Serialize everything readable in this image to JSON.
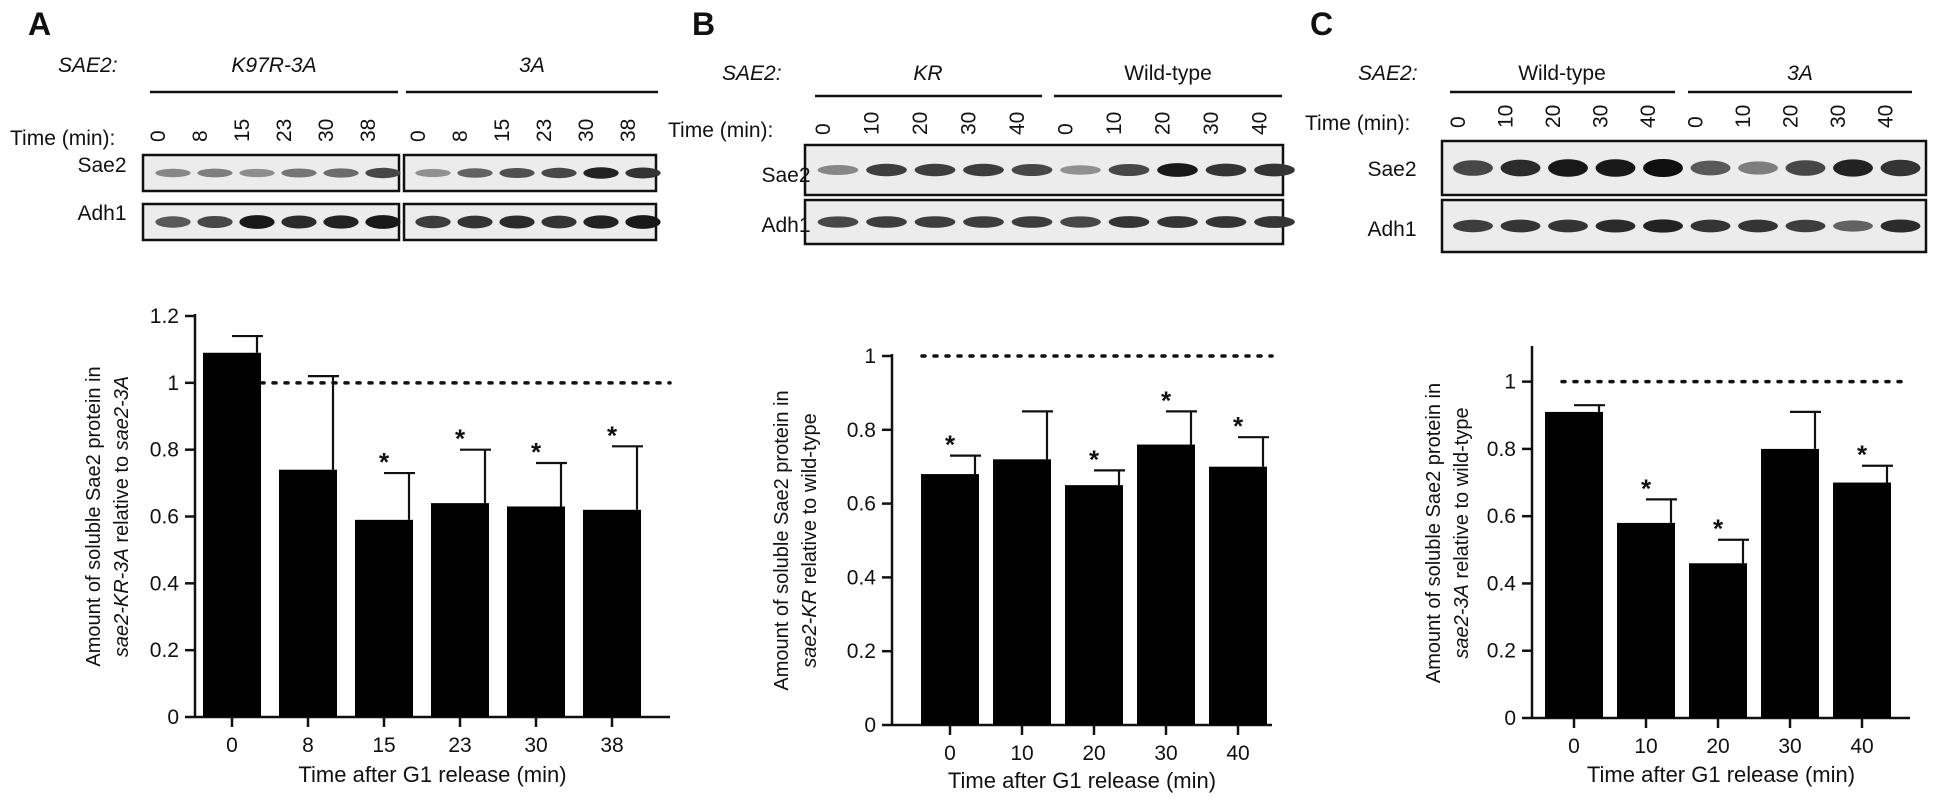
{
  "figure_title": "",
  "chart_data": [
    {
      "panel": "A",
      "type": "bar",
      "gene_label": "SAE2:",
      "blot": {
        "groups": [
          "K97R-3A",
          "3A"
        ],
        "time_label": "Time (min):",
        "lanes": [
          "0",
          "8",
          "15",
          "23",
          "30",
          "38",
          "0",
          "8",
          "15",
          "23",
          "30",
          "38"
        ],
        "rows": [
          {
            "label": "Sae2",
            "intensity": [
              0.35,
              0.4,
              0.32,
              0.45,
              0.5,
              0.7,
              0.3,
              0.55,
              0.65,
              0.7,
              0.9,
              0.8
            ]
          },
          {
            "label": "Adh1",
            "intensity": [
              0.6,
              0.7,
              0.95,
              0.85,
              0.9,
              0.95,
              0.75,
              0.8,
              0.85,
              0.8,
              0.9,
              0.95
            ]
          }
        ]
      },
      "categories": [
        "0",
        "8",
        "15",
        "23",
        "30",
        "38"
      ],
      "values": [
        1.09,
        0.74,
        0.59,
        0.64,
        0.63,
        0.62
      ],
      "errors": [
        0.05,
        0.28,
        0.14,
        0.16,
        0.13,
        0.19
      ],
      "significant": [
        false,
        false,
        true,
        true,
        true,
        true
      ],
      "significance_mark": "*",
      "reference_line": 1,
      "ylim": [
        0,
        1.2
      ],
      "yticks": [
        0,
        0.2,
        0.4,
        0.6,
        0.8,
        1,
        1.2
      ],
      "ytick_labels": [
        "0",
        "0.2",
        "0.4",
        "0.6",
        "0.8",
        "1",
        "1.2"
      ],
      "ylabel_line1": "Amount of soluble Sae2 protein in",
      "ylabel_line2_parts": [
        {
          "text": "sae2-KR-3A",
          "italic": true
        },
        {
          "text": " relative to ",
          "italic": false
        },
        {
          "text": "sae2-3A",
          "italic": true
        }
      ],
      "xlabel": "Time after G1 release (min)"
    },
    {
      "panel": "B",
      "type": "bar",
      "gene_label": "SAE2:",
      "blot": {
        "groups": [
          "KR",
          "Wild-type"
        ],
        "time_label": "Time (min):",
        "lanes": [
          "0",
          "10",
          "20",
          "30",
          "40",
          "0",
          "10",
          "20",
          "30",
          "40"
        ],
        "rows": [
          {
            "label": "Sae2",
            "intensity": [
              0.35,
              0.75,
              0.75,
              0.75,
              0.7,
              0.3,
              0.7,
              0.95,
              0.8,
              0.8
            ]
          },
          {
            "label": "Adh1",
            "intensity": [
              0.7,
              0.75,
              0.75,
              0.75,
              0.75,
              0.7,
              0.8,
              0.8,
              0.8,
              0.8
            ]
          }
        ]
      },
      "categories": [
        "0",
        "10",
        "20",
        "30",
        "40"
      ],
      "values": [
        0.68,
        0.72,
        0.65,
        0.76,
        0.7
      ],
      "errors": [
        0.05,
        0.13,
        0.04,
        0.09,
        0.08
      ],
      "significant": [
        true,
        false,
        true,
        true,
        true
      ],
      "significance_mark": "*",
      "reference_line": 1,
      "ylim": [
        0,
        1
      ],
      "yticks": [
        0,
        0.2,
        0.4,
        0.6,
        0.8,
        1
      ],
      "ytick_labels": [
        "0",
        "0.2",
        "0.4",
        "0.6",
        "0.8",
        "1"
      ],
      "ylabel_line1": "Amount of soluble Sae2 protein in",
      "ylabel_line2_parts": [
        {
          "text": "sae2-KR",
          "italic": true
        },
        {
          "text": " relative to wild-type",
          "italic": false
        }
      ],
      "xlabel": "Time after G1 release (min)"
    },
    {
      "panel": "C",
      "type": "bar",
      "gene_label": "SAE2:",
      "blot": {
        "groups": [
          "Wild-type",
          "3A"
        ],
        "time_label": "Time (min):",
        "lanes": [
          "0",
          "10",
          "20",
          "30",
          "40",
          "0",
          "10",
          "20",
          "30",
          "40"
        ],
        "rows": [
          {
            "label": "Sae2",
            "intensity": [
              0.7,
              0.85,
              0.95,
              0.95,
              1.0,
              0.6,
              0.4,
              0.7,
              0.9,
              0.8
            ]
          },
          {
            "label": "Adh1",
            "intensity": [
              0.75,
              0.8,
              0.8,
              0.85,
              0.9,
              0.8,
              0.8,
              0.75,
              0.55,
              0.85
            ]
          }
        ]
      },
      "categories": [
        "0",
        "10",
        "20",
        "30",
        "40"
      ],
      "values": [
        0.91,
        0.58,
        0.46,
        0.8,
        0.7
      ],
      "errors": [
        0.02,
        0.07,
        0.07,
        0.11,
        0.05
      ],
      "significant": [
        false,
        true,
        true,
        false,
        true
      ],
      "significance_mark": "*",
      "reference_line": 1,
      "ylim": [
        0,
        1.1
      ],
      "yticks": [
        0,
        0.2,
        0.4,
        0.6,
        0.8,
        1
      ],
      "ytick_labels": [
        "0",
        "0.2",
        "0.4",
        "0.6",
        "0.8",
        "1"
      ],
      "ylabel_line1": "Amount of soluble Sae2 protein in",
      "ylabel_line2_parts": [
        {
          "text": "sae2-3A",
          "italic": true
        },
        {
          "text": " relative to wild-type",
          "italic": false
        }
      ],
      "xlabel": "Time after G1 release (min)"
    }
  ]
}
